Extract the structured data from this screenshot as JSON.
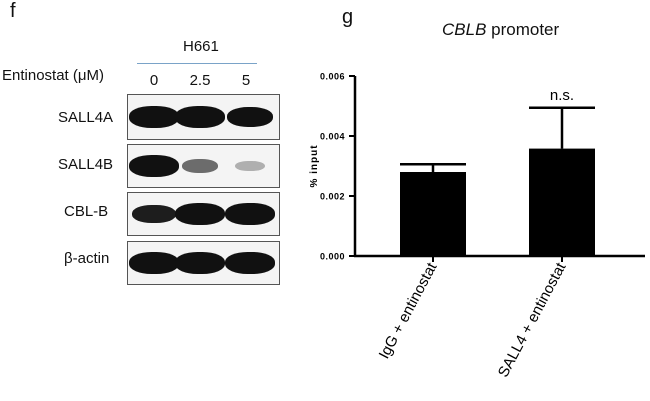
{
  "panel_f": {
    "letter": "f",
    "cell_line": "H661",
    "treatment_label": "Entinostat (μM)",
    "doses": [
      "0",
      "2.5",
      "5"
    ],
    "blots": [
      {
        "name": "SALL4A",
        "band_intensity": [
          1.0,
          1.0,
          0.85
        ]
      },
      {
        "name": "SALL4B",
        "band_intensity": [
          1.0,
          0.35,
          0.05
        ]
      },
      {
        "name": "CBL-B",
        "band_intensity": [
          0.7,
          1.0,
          1.0
        ]
      },
      {
        "name": "β-actin",
        "band_intensity": [
          1.0,
          1.0,
          1.0
        ]
      }
    ]
  },
  "panel_g": {
    "letter": "g",
    "title_italic": "CBLB",
    "title_rest": " promoter",
    "annotation": "n.s."
  },
  "chart_data": {
    "type": "bar",
    "categories": [
      "IgG + entinostat",
      "SALL4 + entinostat"
    ],
    "values": [
      0.0028,
      0.00358
    ],
    "errors": [
      0.00026,
      0.00136
    ],
    "ylabel": "% input",
    "ylim": [
      0,
      0.006
    ],
    "yticks": [
      "0.000",
      "0.002",
      "0.004",
      "0.006"
    ],
    "colors": {
      "bar": "#000000"
    }
  }
}
